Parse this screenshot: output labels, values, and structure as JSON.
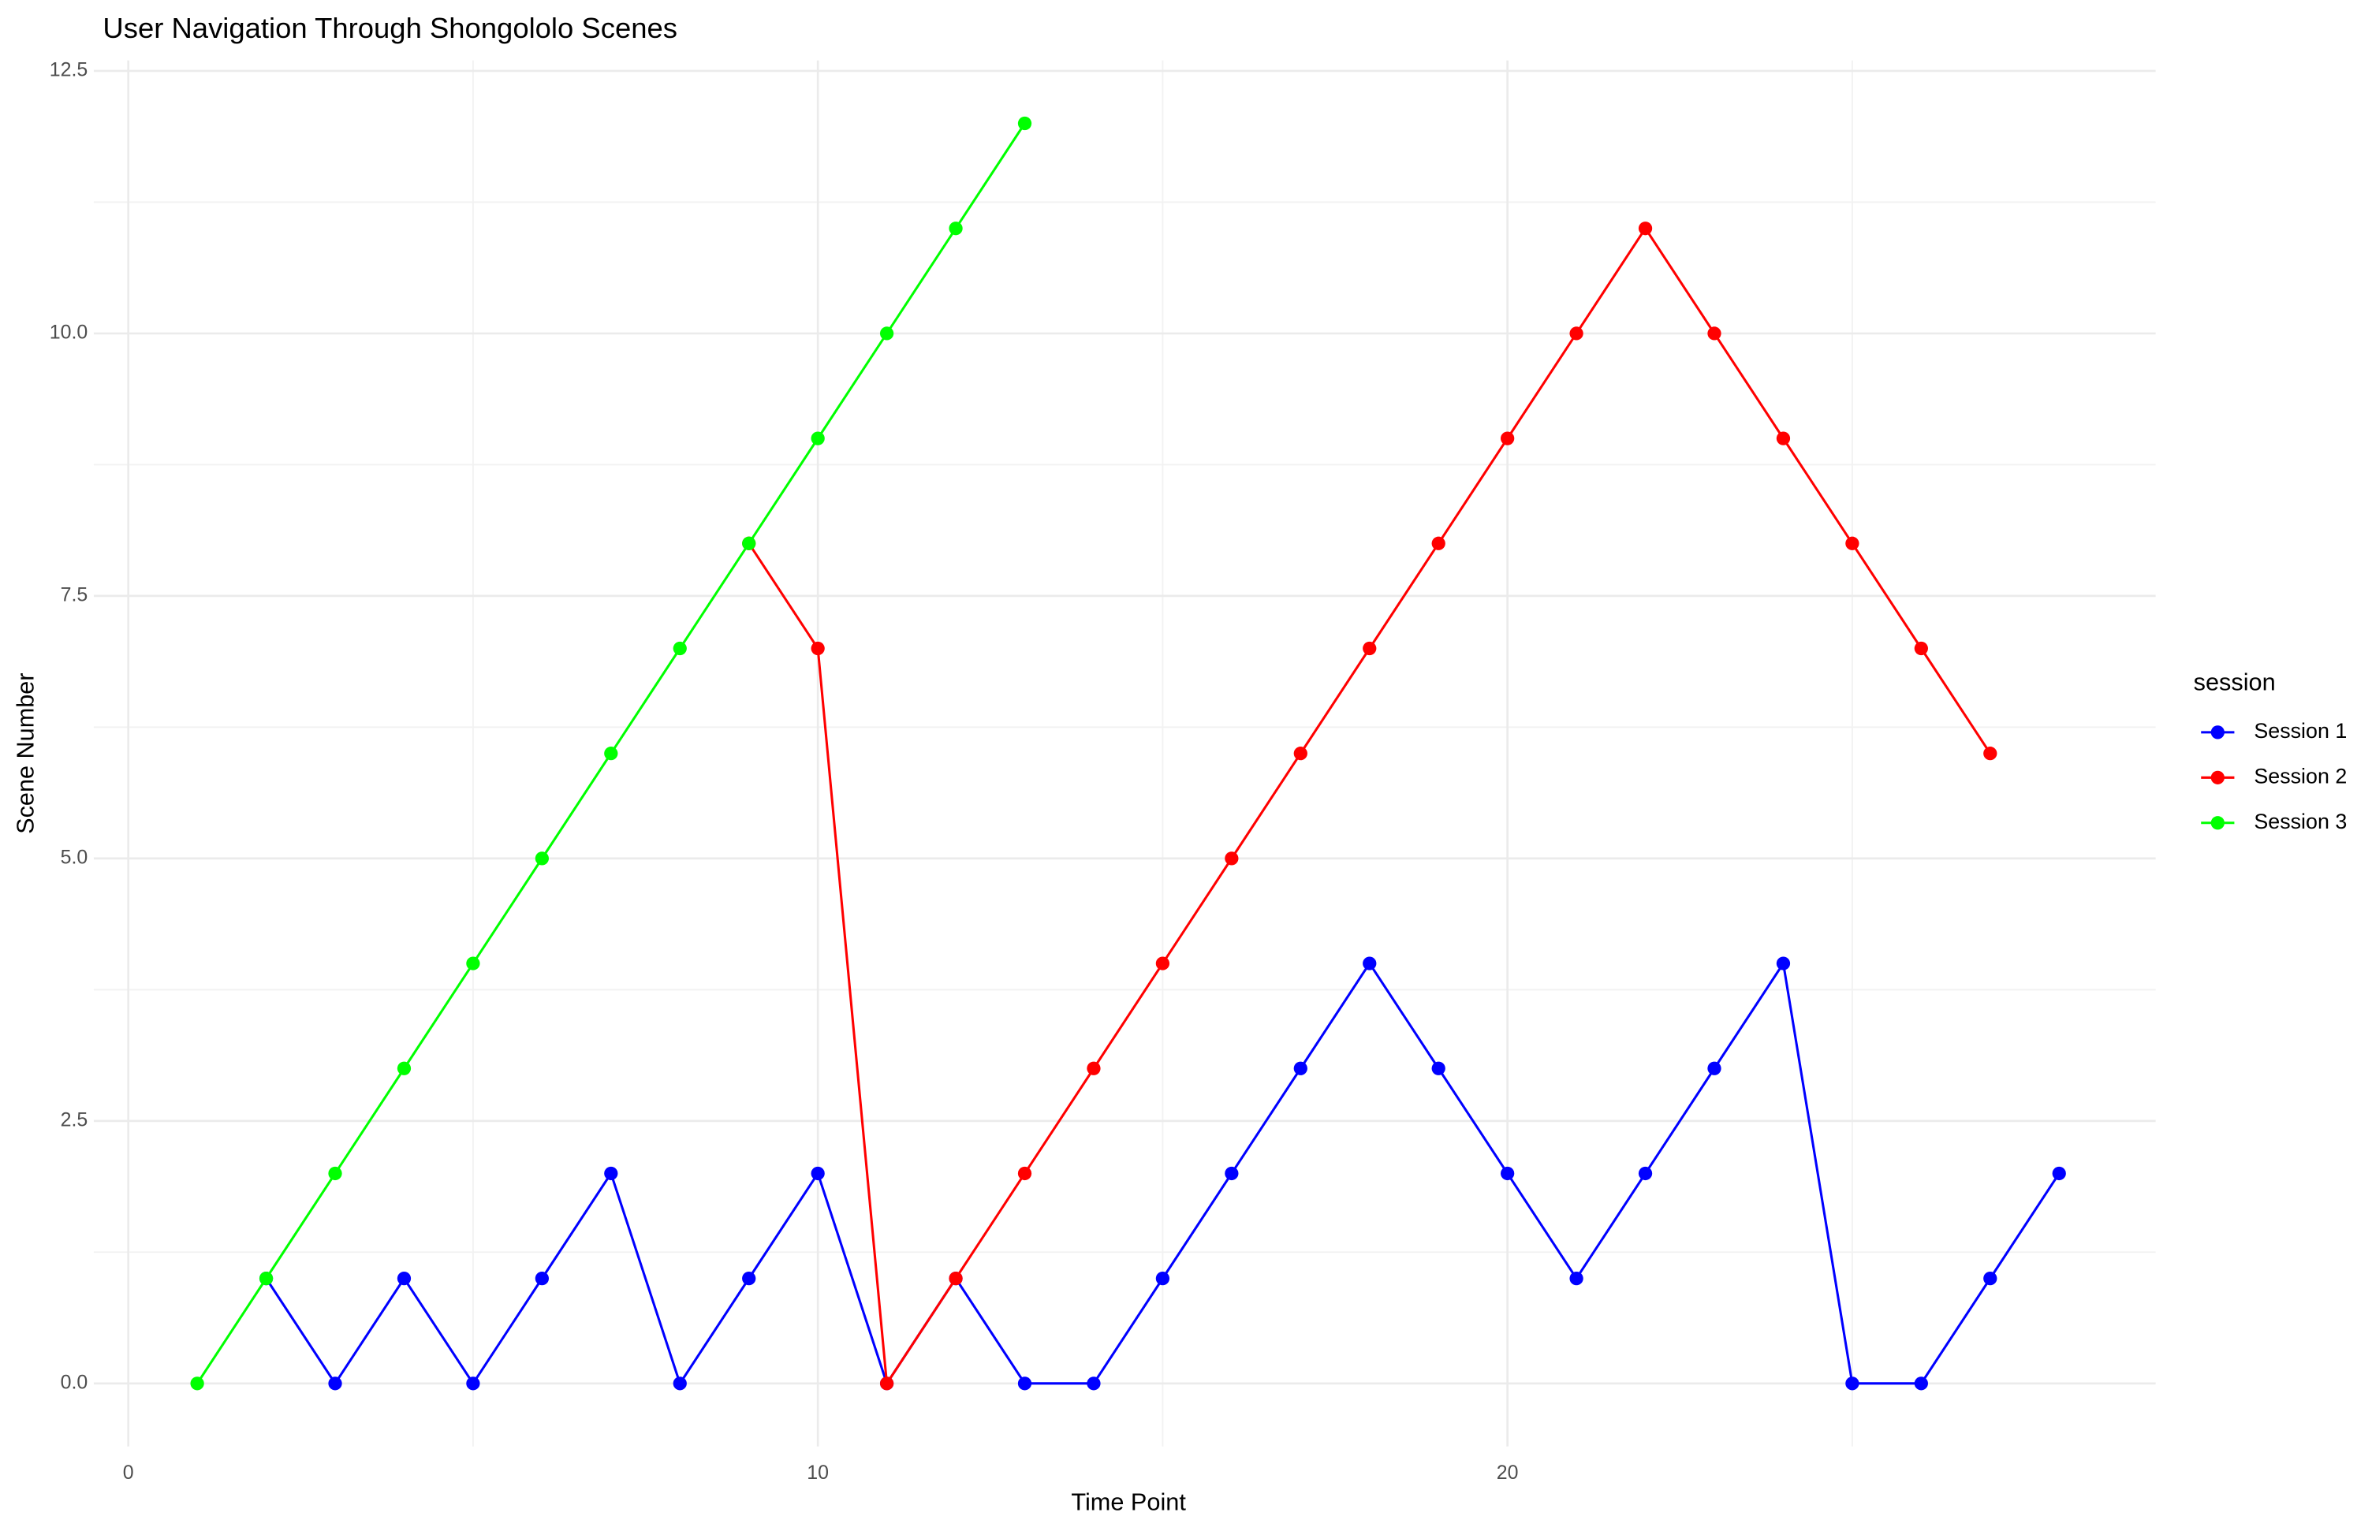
{
  "chart_data": {
    "type": "line",
    "title": "User Navigation Through Shongololo Scenes",
    "x_label": "Time Point",
    "y_label": "Scene Number",
    "legend_title": "session",
    "legend_position": "right",
    "grid": true,
    "xlim": [
      -0.5,
      29.4
    ],
    "ylim": [
      -0.6,
      12.6
    ],
    "xticks": [
      0,
      10,
      20
    ],
    "yticks": [
      {
        "value": 0,
        "label": "0.0"
      },
      {
        "value": 2.5,
        "label": "2.5"
      },
      {
        "value": 5,
        "label": "5.0"
      },
      {
        "value": 7.5,
        "label": "7.5"
      },
      {
        "value": 10,
        "label": "10.0"
      },
      {
        "value": 12.5,
        "label": "12.5"
      }
    ],
    "series": [
      {
        "name": "Session 1",
        "color": "#0000ff",
        "x": [
          2,
          3,
          4,
          5,
          6,
          7,
          8,
          9,
          10,
          11,
          12,
          13,
          14,
          15,
          16,
          17,
          18,
          19,
          20,
          21,
          22,
          23,
          24,
          25,
          26,
          27,
          28
        ],
        "values": [
          1,
          0,
          1,
          0,
          1,
          2,
          0,
          1,
          2,
          0,
          1,
          0,
          0,
          1,
          2,
          3,
          4,
          3,
          2,
          1,
          2,
          3,
          4,
          0,
          0,
          1,
          2
        ]
      },
      {
        "name": "Session 2",
        "color": "#ff0000",
        "x": [
          9,
          10,
          11,
          12,
          13,
          14,
          15,
          16,
          17,
          18,
          19,
          20,
          21,
          22,
          23,
          24,
          25,
          26,
          27
        ],
        "values": [
          8,
          7,
          0,
          1,
          2,
          3,
          4,
          5,
          6,
          7,
          8,
          9,
          10,
          11,
          10,
          9,
          8,
          7,
          6
        ]
      },
      {
        "name": "Session 3",
        "color": "#00ff00",
        "x": [
          1,
          2,
          3,
          4,
          5,
          6,
          7,
          8,
          9,
          10,
          11,
          12,
          13
        ],
        "values": [
          0,
          1,
          2,
          3,
          4,
          5,
          6,
          7,
          8,
          9,
          10,
          11,
          12
        ]
      }
    ]
  }
}
